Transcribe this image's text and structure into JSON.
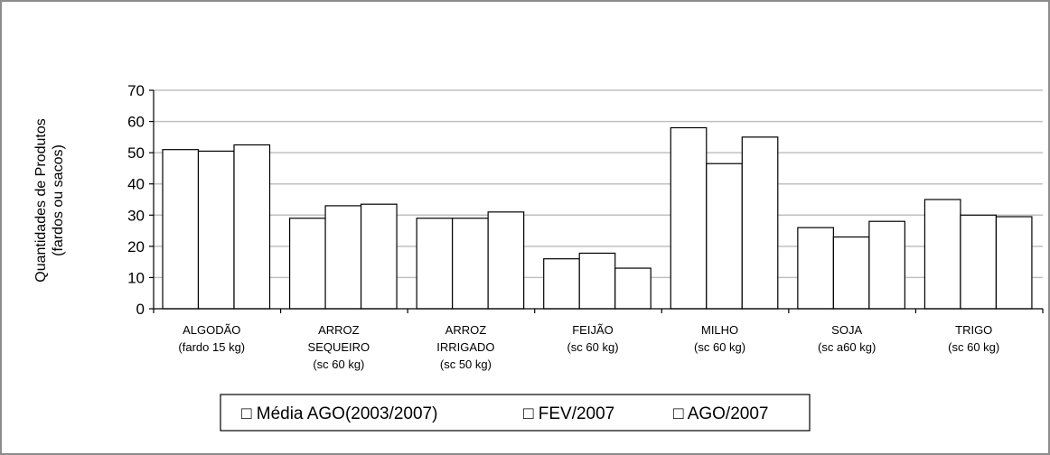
{
  "chart_data": {
    "type": "bar",
    "ylabel_lines": [
      "Quantidades de Produtos",
      "(fardos ou sacos)"
    ],
    "ylim": [
      0,
      70
    ],
    "yticks": [
      "0",
      "10",
      "20",
      "30",
      "40",
      "50",
      "60",
      "70"
    ],
    "grid": true,
    "legend_placement": "bottom",
    "categories": [
      {
        "lines": [
          "ALGODÃO",
          "(fardo 15 kg)"
        ]
      },
      {
        "lines": [
          "ARROZ",
          "SEQUEIRO",
          "(sc 60 kg)"
        ]
      },
      {
        "lines": [
          "ARROZ",
          "IRRIGADO",
          "(sc 50 kg)"
        ]
      },
      {
        "lines": [
          "FEIJÃO",
          "(sc 60 kg)"
        ]
      },
      {
        "lines": [
          "MILHO",
          "(sc 60 kg)"
        ]
      },
      {
        "lines": [
          "SOJA",
          "(sc a60 kg)"
        ]
      },
      {
        "lines": [
          "TRIGO",
          "(sc 60 kg)"
        ]
      }
    ],
    "series": [
      {
        "name": "□ Média AGO(2003/2007)",
        "values": [
          51,
          29,
          29,
          16,
          58,
          26,
          35
        ]
      },
      {
        "name": "□ FEV/2007",
        "values": [
          50.5,
          33,
          29,
          17.8,
          46.5,
          23,
          30
        ]
      },
      {
        "name": "□ AGO/2007",
        "values": [
          52.5,
          33.5,
          31,
          13,
          55,
          28,
          29.5
        ]
      }
    ],
    "colors": {
      "bar_fill": "#ffffff",
      "bar_stroke": "#000000",
      "grid": "#c0c0c0",
      "frame": "#8c8c8c"
    }
  }
}
